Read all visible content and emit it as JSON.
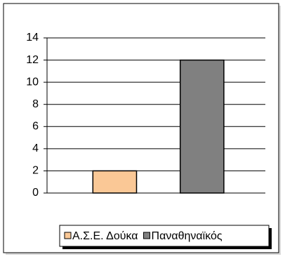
{
  "chart_data": {
    "type": "bar",
    "categories": [
      null
    ],
    "series": [
      {
        "name": "Α.Σ.Ε. Δούκα",
        "color": "#fac896",
        "values": [
          2
        ]
      },
      {
        "name": "Παναθηναϊκός",
        "color": "#808080",
        "values": [
          12
        ]
      }
    ],
    "ylim": [
      0,
      14
    ],
    "yticks": [
      0,
      2,
      4,
      6,
      8,
      10,
      12,
      14
    ],
    "grid": true,
    "legend": "bottom"
  }
}
